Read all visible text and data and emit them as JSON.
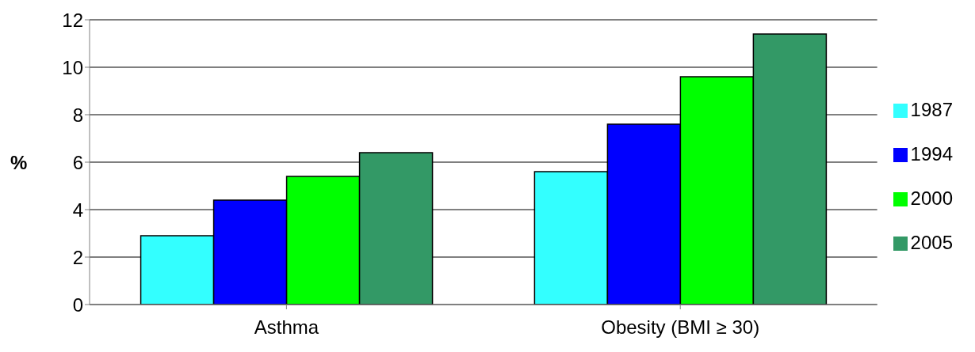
{
  "chart_data": {
    "type": "bar",
    "ylabel": "%",
    "categories": [
      "Asthma",
      "Obesity (BMI ≥ 30)"
    ],
    "series": [
      {
        "name": "1987",
        "color": "#33ffff",
        "values": [
          2.9,
          5.6
        ]
      },
      {
        "name": "1994",
        "color": "#0000ff",
        "values": [
          4.4,
          7.6
        ]
      },
      {
        "name": "2000",
        "color": "#00ff00",
        "values": [
          5.4,
          9.6
        ]
      },
      {
        "name": "2005",
        "color": "#339966",
        "values": [
          6.4,
          11.4
        ]
      }
    ],
    "ylim": [
      0,
      12
    ],
    "yticks": [
      0,
      2,
      4,
      6,
      8,
      10,
      12
    ],
    "grid": "y",
    "legend": "right"
  }
}
